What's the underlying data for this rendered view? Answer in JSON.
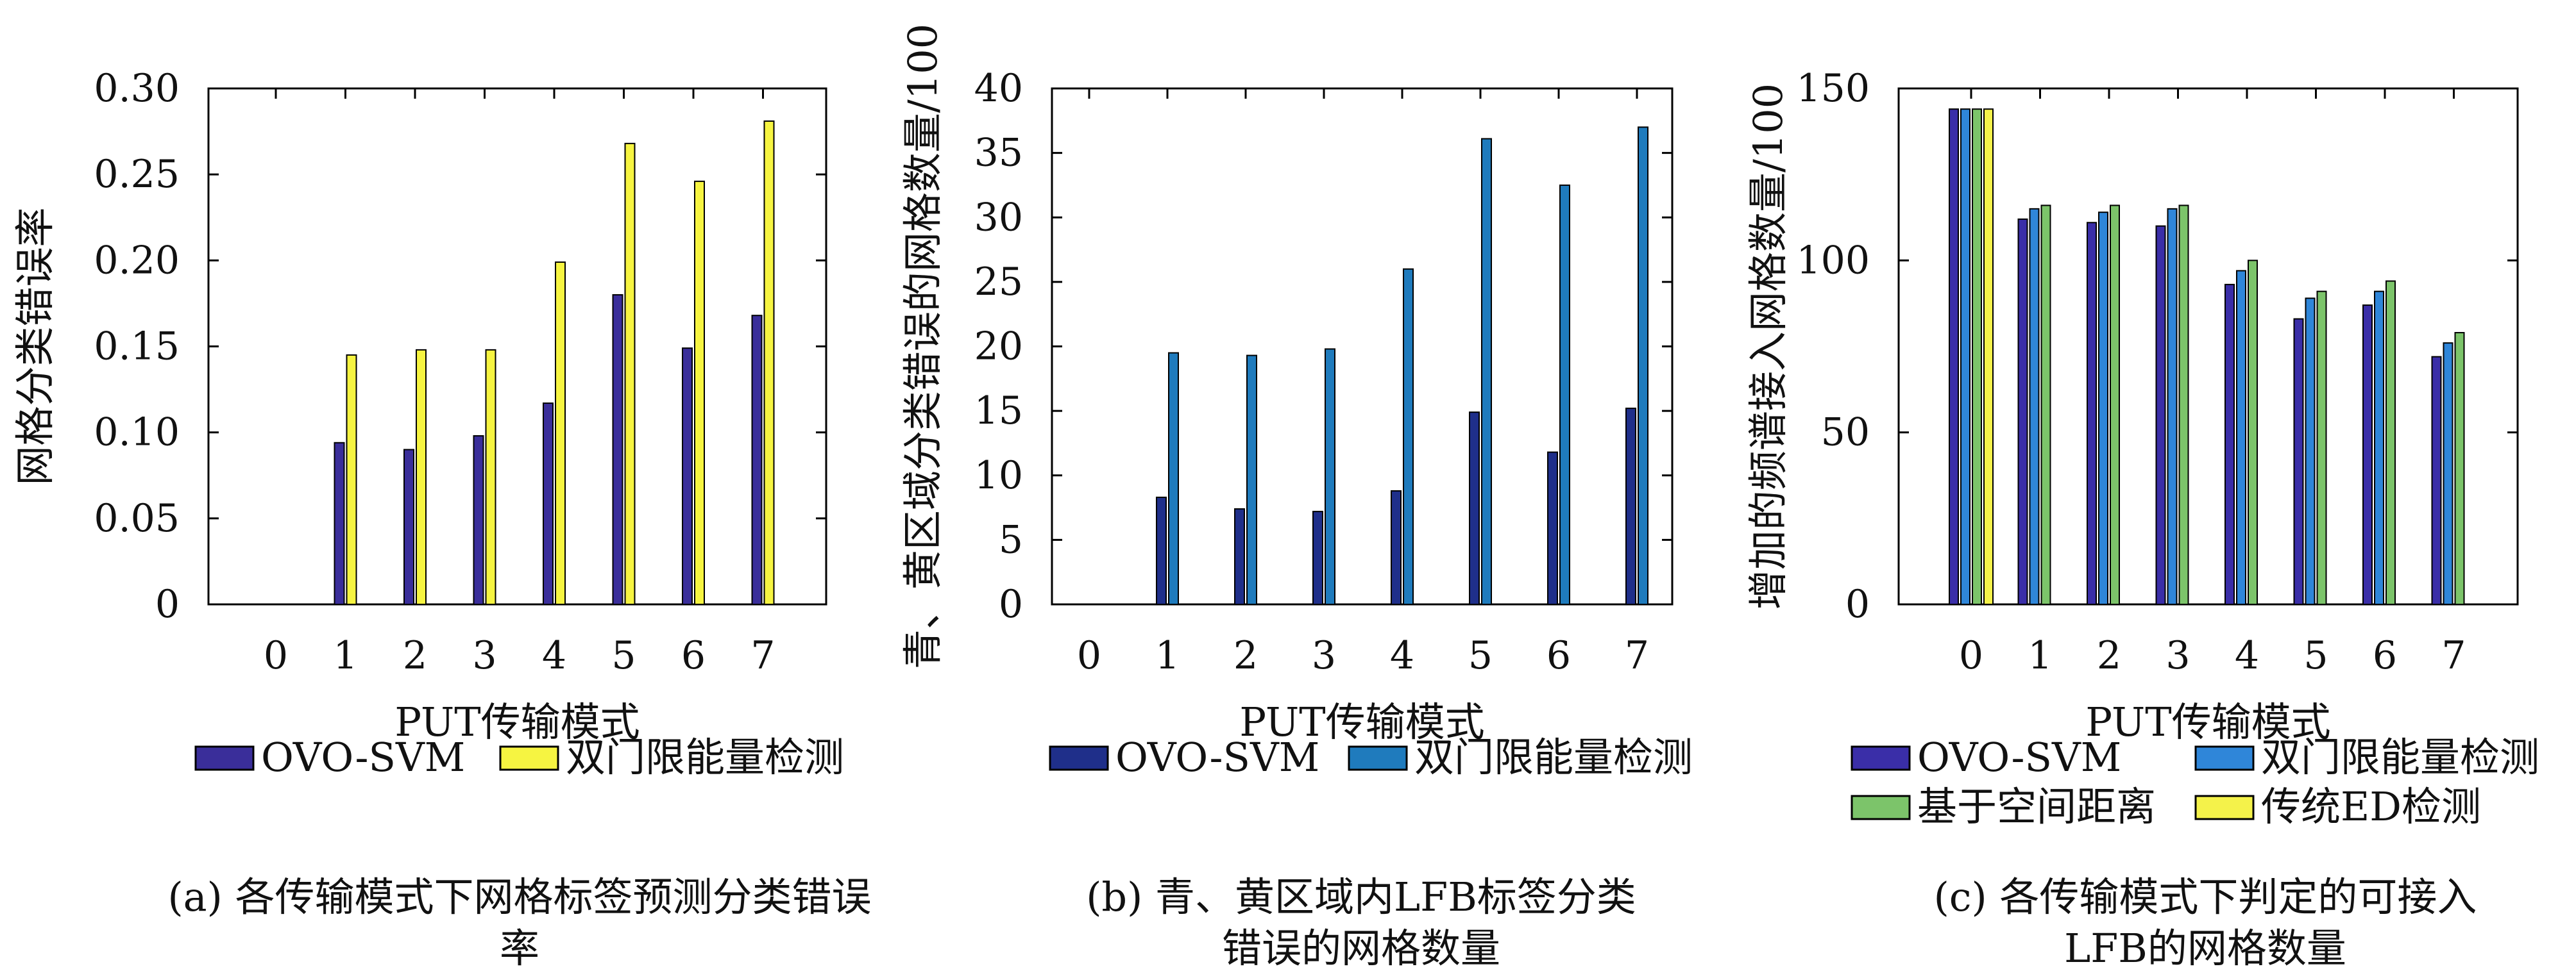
{
  "chart_data": [
    {
      "type": "bar",
      "categories": [
        "0",
        "1",
        "2",
        "3",
        "4",
        "5",
        "6",
        "7"
      ],
      "xlabel": "PUT传输模式",
      "ylabel": "网格分类错误率",
      "ylim": [
        0,
        0.3
      ],
      "yticks": [
        0,
        0.05,
        0.1,
        0.15,
        0.2,
        0.25,
        0.3
      ],
      "ytick_labels": [
        "0",
        "0.05",
        "0.10",
        "0.15",
        "0.20",
        "0.25",
        "0.30"
      ],
      "legend_position": "bottom",
      "series": [
        {
          "name": "OVO-SVM",
          "color": "#3a2e9a",
          "values": [
            0,
            0.094,
            0.09,
            0.098,
            0.117,
            0.18,
            0.149,
            0.168
          ]
        },
        {
          "name": "双门限能量检测",
          "color": "#f6f441",
          "values": [
            0,
            0.145,
            0.148,
            0.148,
            0.199,
            0.268,
            0.246,
            0.281
          ]
        }
      ],
      "caption": [
        "(a) 各传输模式下网格标签预测分类错误率"
      ]
    },
    {
      "type": "bar",
      "categories": [
        "0",
        "1",
        "2",
        "3",
        "4",
        "5",
        "6",
        "7"
      ],
      "xlabel": "PUT传输模式",
      "ylabel": "青、黄区域分类错误的网格数量/100",
      "ylim": [
        0,
        40
      ],
      "yticks": [
        0,
        5,
        10,
        15,
        20,
        25,
        30,
        35,
        40
      ],
      "ytick_labels": [
        "0",
        "5",
        "10",
        "15",
        "20",
        "25",
        "30",
        "35",
        "40"
      ],
      "legend_position": "bottom",
      "series": [
        {
          "name": "OVO-SVM",
          "color": "#1f2f8a",
          "values": [
            0,
            8.3,
            7.4,
            7.2,
            8.8,
            14.9,
            11.8,
            15.2
          ]
        },
        {
          "name": "双门限能量检测",
          "color": "#1f7bbd",
          "values": [
            0,
            19.5,
            19.3,
            19.8,
            26.0,
            36.1,
            32.5,
            37.0
          ]
        }
      ],
      "caption": [
        "(b) 青、黄区域内LFB标签分类",
        "错误的网格数量"
      ]
    },
    {
      "type": "bar",
      "categories": [
        "0",
        "1",
        "2",
        "3",
        "4",
        "5",
        "6",
        "7"
      ],
      "xlabel": "PUT传输模式",
      "ylabel": "增加的频谱接入网格数量/100",
      "ylim": [
        0,
        150
      ],
      "yticks": [
        0,
        50,
        100,
        150
      ],
      "ytick_labels": [
        "0",
        "50",
        "100",
        "150"
      ],
      "legend_position": "bottom",
      "series": [
        {
          "name": "OVO-SVM",
          "color": "#3a2ea8",
          "values": [
            144,
            112,
            111,
            110,
            93,
            83,
            87,
            72
          ]
        },
        {
          "name": "双门限能量检测",
          "color": "#2f86d9",
          "values": [
            144,
            115,
            114,
            115,
            97,
            89,
            91,
            76
          ]
        },
        {
          "name": "基于空间距离",
          "color": "#7cc46a",
          "values": [
            144,
            116,
            116,
            116,
            100,
            91,
            94,
            79
          ]
        },
        {
          "name": "传统ED检测",
          "color": "#f4f24a",
          "values": [
            144,
            0,
            0,
            0,
            0,
            0,
            0,
            0
          ]
        }
      ],
      "caption": [
        "(c) 各传输模式下判定的可接入",
        "LFB的网格数量"
      ]
    }
  ]
}
